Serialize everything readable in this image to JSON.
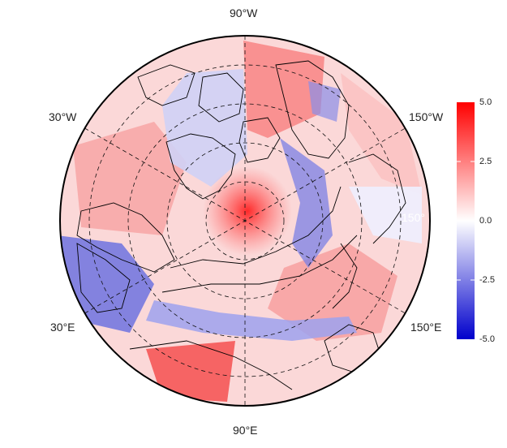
{
  "map": {
    "projection": "north-polar-stereographic",
    "meridian_labels": {
      "top": "90°W",
      "upper_left": "30°W",
      "upper_right": "150°W",
      "lower_left": "30°E",
      "lower_right": "150°E",
      "bottom": "90°E",
      "inner_right": "150°"
    },
    "grid": true,
    "coastlines": true
  },
  "colorbar": {
    "ticks": [
      "5.0",
      "2.5",
      "0.0",
      "-2.5",
      "-5.0"
    ],
    "min": -5.0,
    "max": 5.0,
    "colors": {
      "low": "#0000cc",
      "mid": "#ffffff",
      "high": "#ff0000"
    }
  }
}
